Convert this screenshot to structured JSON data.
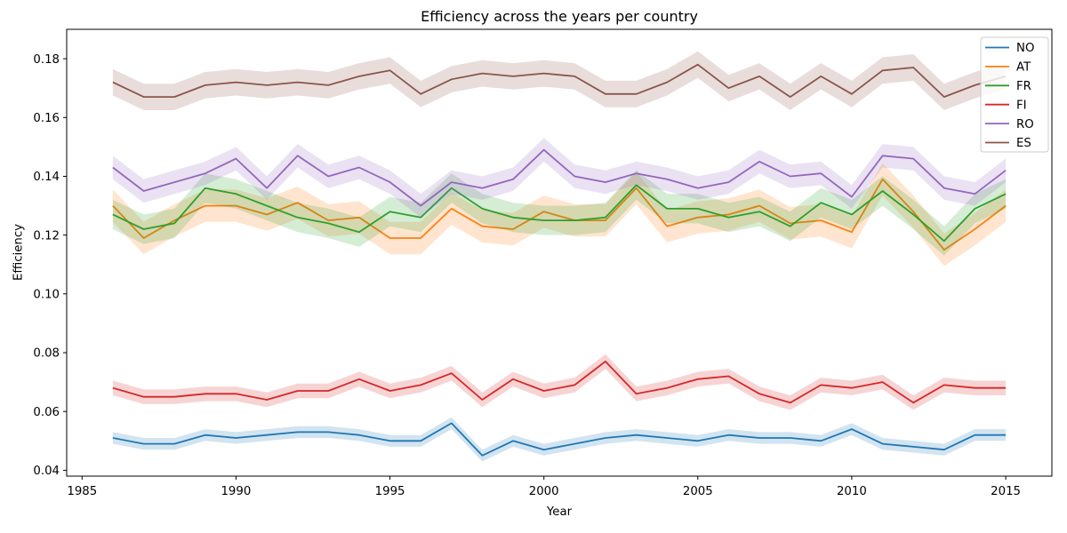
{
  "figure": {
    "title": "Efficiency across the years per country",
    "xlabel": "Year",
    "ylabel": "Efficiency"
  },
  "chart_data": {
    "type": "line",
    "title": "Efficiency across the years per country",
    "xlabel": "Year",
    "ylabel": "Efficiency",
    "grid": false,
    "legend_position": "upper right",
    "xlim": [
      1984.5,
      2016.5
    ],
    "ylim": [
      0.038,
      0.19
    ],
    "xticks": [
      1985,
      1990,
      1995,
      2000,
      2005,
      2010,
      2015
    ],
    "yticks": [
      0.04,
      0.06,
      0.08,
      0.1,
      0.12,
      0.14,
      0.16,
      0.18
    ],
    "x": [
      1986,
      1987,
      1988,
      1989,
      1990,
      1991,
      1992,
      1993,
      1994,
      1995,
      1996,
      1997,
      1998,
      1999,
      2000,
      2001,
      2002,
      2003,
      2004,
      2005,
      2006,
      2007,
      2008,
      2009,
      2010,
      2011,
      2012,
      2013,
      2014,
      2015
    ],
    "series": [
      {
        "name": "NO",
        "color": "#1f77b4",
        "band_halfwidth": 0.002,
        "values": [
          0.051,
          0.049,
          0.049,
          0.052,
          0.051,
          0.052,
          0.053,
          0.053,
          0.052,
          0.05,
          0.05,
          0.056,
          0.045,
          0.05,
          0.047,
          0.049,
          0.051,
          0.052,
          0.051,
          0.05,
          0.052,
          0.051,
          0.051,
          0.05,
          0.054,
          0.049,
          0.048,
          0.047,
          0.052,
          0.052
        ]
      },
      {
        "name": "AT",
        "color": "#ff7f0e",
        "band_halfwidth": 0.0055,
        "values": [
          0.13,
          0.119,
          0.125,
          0.13,
          0.13,
          0.127,
          0.131,
          0.125,
          0.126,
          0.119,
          0.119,
          0.129,
          0.123,
          0.122,
          0.128,
          0.125,
          0.125,
          0.136,
          0.123,
          0.126,
          0.127,
          0.13,
          0.124,
          0.125,
          0.121,
          0.139,
          0.128,
          0.115,
          0.122,
          0.13
        ]
      },
      {
        "name": "FR",
        "color": "#2ca02c",
        "band_halfwidth": 0.005,
        "values": [
          0.127,
          0.122,
          0.124,
          0.136,
          0.134,
          0.13,
          0.126,
          0.124,
          0.121,
          0.128,
          0.126,
          0.136,
          0.129,
          0.126,
          0.125,
          0.125,
          0.126,
          0.137,
          0.129,
          0.129,
          0.126,
          0.128,
          0.123,
          0.131,
          0.127,
          0.135,
          0.127,
          0.118,
          0.129,
          0.134
        ]
      },
      {
        "name": "FI",
        "color": "#d62728",
        "band_halfwidth": 0.0025,
        "values": [
          0.068,
          0.065,
          0.065,
          0.066,
          0.066,
          0.064,
          0.067,
          0.067,
          0.071,
          0.067,
          0.069,
          0.073,
          0.064,
          0.071,
          0.067,
          0.069,
          0.077,
          0.066,
          0.068,
          0.071,
          0.072,
          0.066,
          0.063,
          0.069,
          0.068,
          0.07,
          0.063,
          0.069,
          0.068,
          0.068
        ]
      },
      {
        "name": "RO",
        "color": "#9467bd",
        "band_halfwidth": 0.004,
        "values": [
          0.143,
          0.135,
          0.138,
          0.141,
          0.146,
          0.136,
          0.147,
          0.14,
          0.143,
          0.138,
          0.13,
          0.138,
          0.136,
          0.139,
          0.149,
          0.14,
          0.138,
          0.141,
          0.139,
          0.136,
          0.138,
          0.145,
          0.14,
          0.141,
          0.133,
          0.147,
          0.146,
          0.136,
          0.134,
          0.142
        ]
      },
      {
        "name": "ES",
        "color": "#8c564b",
        "band_halfwidth": 0.0045,
        "values": [
          0.172,
          0.167,
          0.167,
          0.171,
          0.172,
          0.171,
          0.172,
          0.171,
          0.174,
          0.176,
          0.168,
          0.173,
          0.175,
          0.174,
          0.175,
          0.174,
          0.168,
          0.168,
          0.172,
          0.178,
          0.17,
          0.174,
          0.167,
          0.174,
          0.168,
          0.176,
          0.177,
          0.167,
          0.171,
          0.174
        ]
      }
    ]
  }
}
